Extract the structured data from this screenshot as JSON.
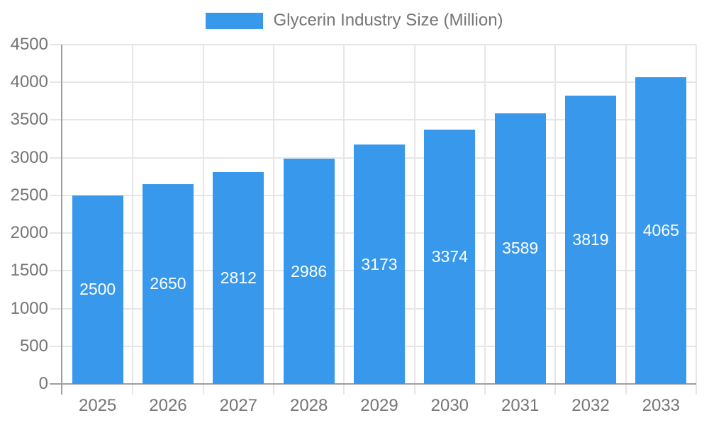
{
  "chart_data": {
    "type": "bar",
    "title": "Glycerin Industry Size (Million)",
    "legend": {
      "label": "Glycerin Industry Size (Million)",
      "position": "top"
    },
    "categories": [
      "2025",
      "2026",
      "2027",
      "2028",
      "2029",
      "2030",
      "2031",
      "2032",
      "2033"
    ],
    "values": [
      2500,
      2650,
      2812,
      2986,
      3173,
      3374,
      3589,
      3819,
      4065
    ],
    "value_labels_visible": true,
    "xlabel": "",
    "ylabel": "",
    "ylim": [
      0,
      4500
    ],
    "yticks": [
      0,
      500,
      1000,
      1500,
      2000,
      2500,
      3000,
      3500,
      4000,
      4500
    ],
    "grid": true,
    "colors": {
      "bar": "#3899ec",
      "bar_label": "#ffffff",
      "axis_text": "#757575",
      "gridline": "#e6e6e6",
      "axis_line": "#9e9e9e",
      "background": "#ffffff"
    }
  }
}
